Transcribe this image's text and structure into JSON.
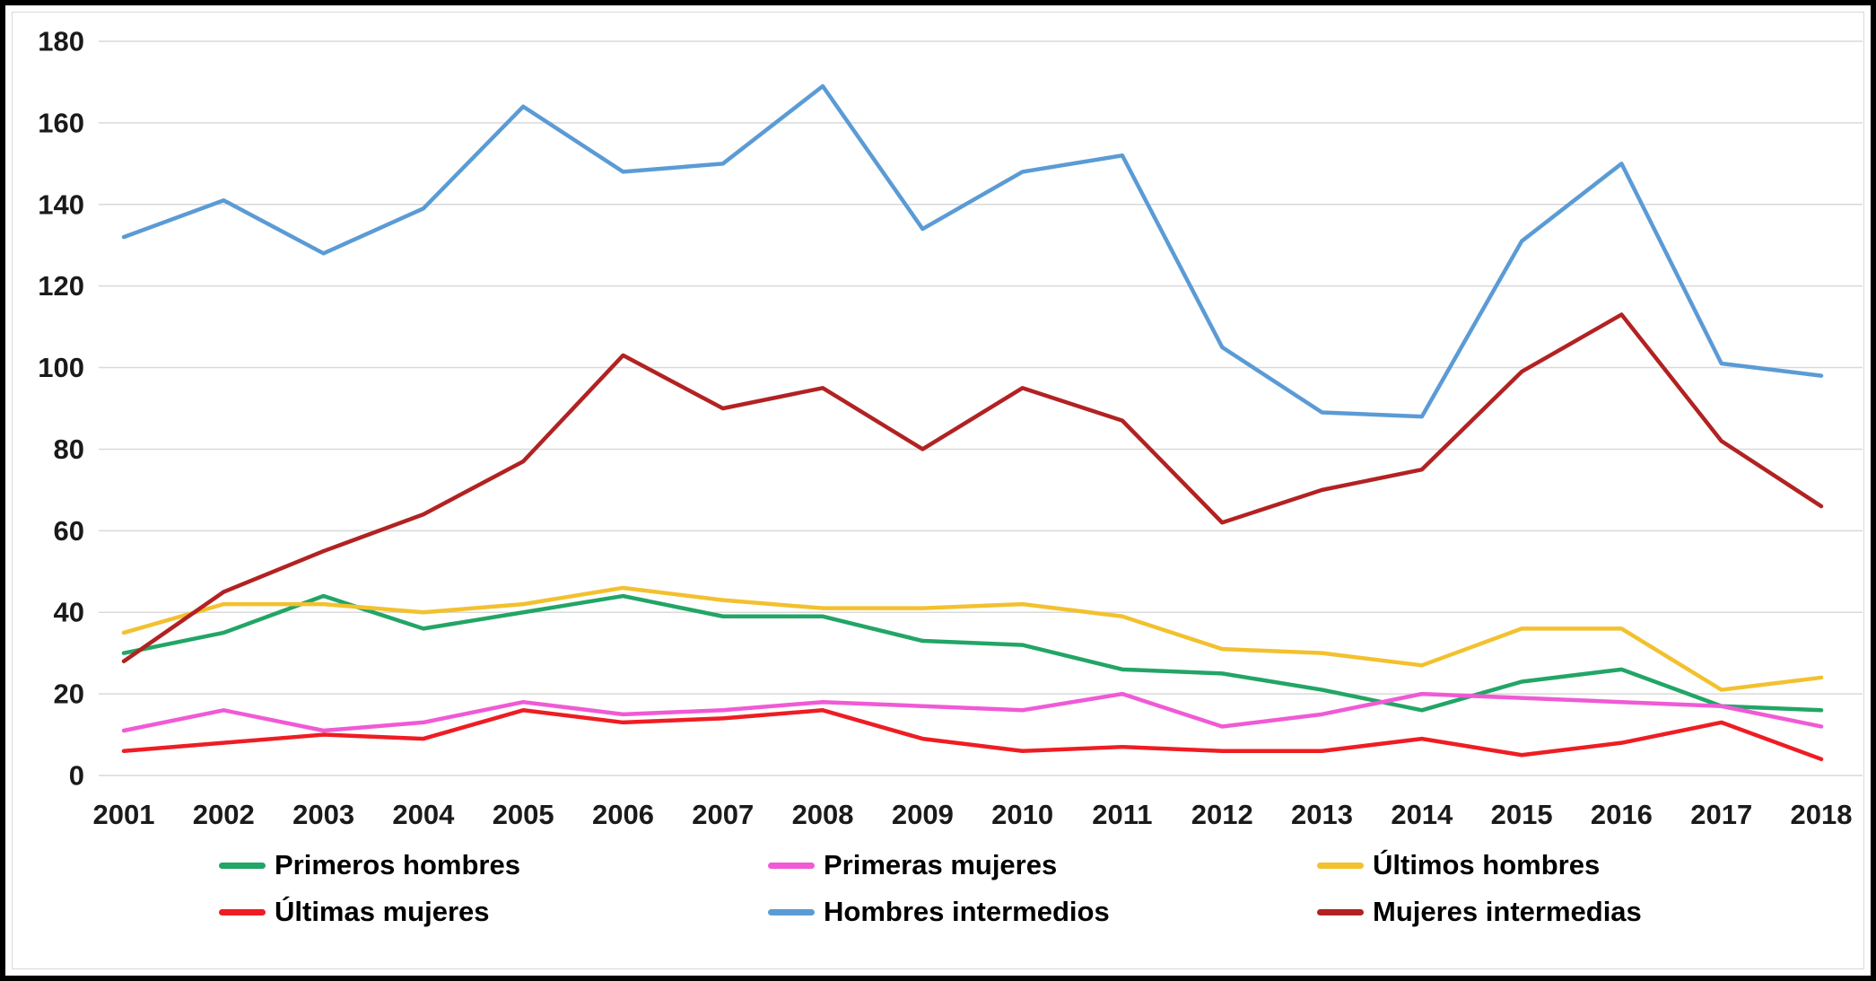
{
  "chart_data": {
    "type": "line",
    "x": [
      2001,
      2002,
      2003,
      2004,
      2005,
      2006,
      2007,
      2008,
      2009,
      2010,
      2011,
      2012,
      2013,
      2014,
      2015,
      2016,
      2017,
      2018
    ],
    "series": [
      {
        "name": "Primeros hombres",
        "color": "#22a566",
        "values": [
          30,
          35,
          44,
          36,
          40,
          44,
          39,
          39,
          33,
          32,
          26,
          25,
          21,
          16,
          23,
          26,
          17,
          16
        ]
      },
      {
        "name": "Primeras mujeres",
        "color": "#f05ad5",
        "values": [
          11,
          16,
          11,
          13,
          18,
          15,
          16,
          18,
          17,
          16,
          20,
          12,
          15,
          20,
          19,
          18,
          17,
          12
        ]
      },
      {
        "name": "Últimos hombres",
        "color": "#f2c12e",
        "values": [
          35,
          42,
          42,
          40,
          42,
          46,
          43,
          41,
          41,
          42,
          39,
          31,
          30,
          27,
          36,
          36,
          21,
          24
        ]
      },
      {
        "name": "Últimas mujeres",
        "color": "#ee1d23",
        "values": [
          6,
          8,
          10,
          9,
          16,
          13,
          14,
          16,
          9,
          6,
          7,
          6,
          6,
          9,
          5,
          8,
          13,
          4
        ]
      },
      {
        "name": "Hombres intermedios",
        "color": "#5b9bd5",
        "values": [
          132,
          141,
          128,
          139,
          164,
          148,
          150,
          169,
          134,
          148,
          152,
          105,
          89,
          88,
          131,
          150,
          101,
          98
        ]
      },
      {
        "name": "Mujeres intermedias",
        "color": "#b22222",
        "values": [
          28,
          45,
          55,
          64,
          77,
          103,
          90,
          95,
          80,
          95,
          87,
          62,
          70,
          75,
          99,
          113,
          82,
          66
        ]
      }
    ],
    "title": "",
    "xlabel": "",
    "ylabel": "",
    "ylim": [
      0,
      180
    ],
    "ytick_step": 20,
    "grid": true,
    "grid_color": "#d9d9d9",
    "legend_position": "bottom"
  }
}
